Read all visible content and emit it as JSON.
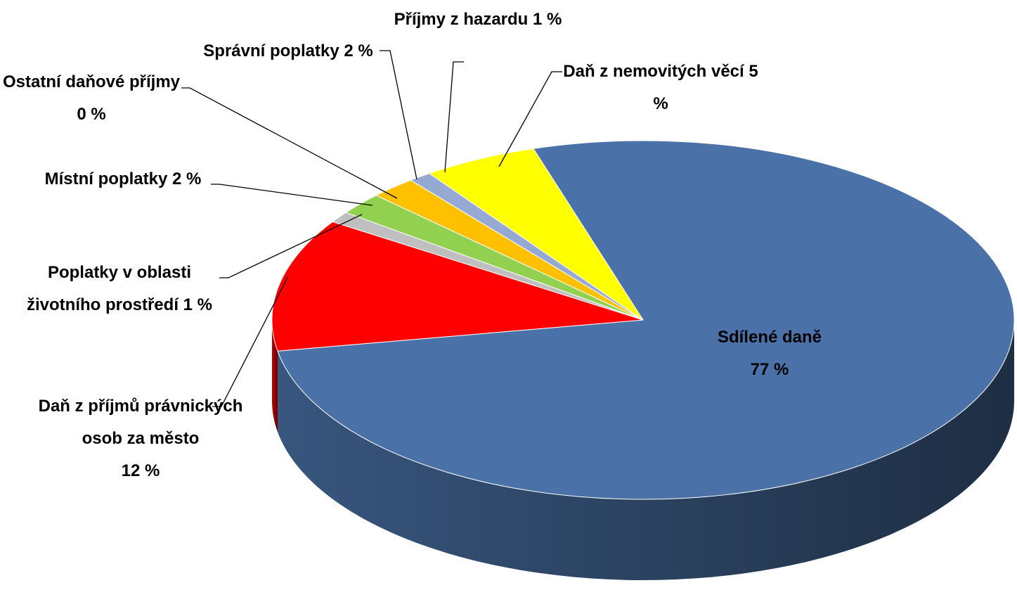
{
  "chart_data": {
    "type": "pie",
    "three_d": true,
    "categories": [
      "Sdílené daně",
      "Daň z příjmů právnických osob za město",
      "Poplatky v oblasti životního prostředí",
      "Místní poplatky",
      "Ostatní daňové příjmy",
      "Správní poplatky",
      "Příjmy z hazardu",
      "Daň z nemovitých věcí"
    ],
    "values": [
      77,
      12,
      1,
      2,
      0,
      2,
      1,
      5
    ],
    "value_labels": [
      "77 %",
      "12 %",
      "1 %",
      "2 %",
      "0 %",
      "2 %",
      "1 %",
      "5 %"
    ],
    "colors": [
      "#4a72a8",
      "#ff0000",
      "#bfbfbf",
      "#92d050",
      "#4f81bd",
      "#ffc000",
      "#95a9d2",
      "#ffff00"
    ]
  }
}
